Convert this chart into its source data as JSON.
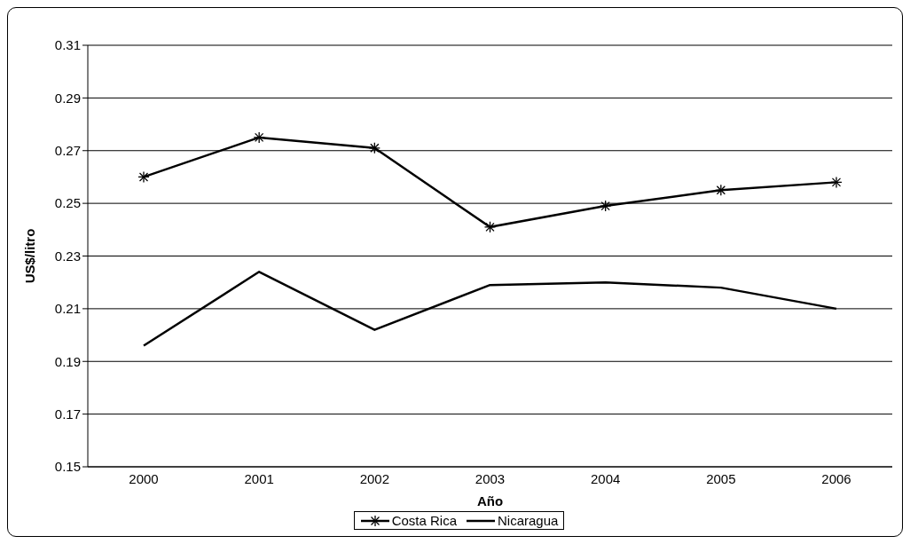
{
  "chart_data": {
    "type": "line",
    "xlabel": "Año",
    "ylabel": "US$/litro",
    "categories": [
      "2000",
      "2001",
      "2002",
      "2003",
      "2004",
      "2005",
      "2006"
    ],
    "series": [
      {
        "name": "Costa Rica",
        "color": "#000000",
        "marker": "cross",
        "values": [
          0.26,
          0.275,
          0.271,
          0.241,
          0.249,
          0.255,
          0.258
        ]
      },
      {
        "name": "Nicaragua",
        "color": "#000000",
        "marker": "none",
        "values": [
          0.196,
          0.224,
          0.202,
          0.219,
          0.22,
          0.218,
          0.21
        ]
      }
    ],
    "ylim": [
      0.15,
      0.31
    ],
    "yticks": [
      0.15,
      0.17,
      0.19,
      0.21,
      0.23,
      0.25,
      0.27,
      0.29,
      0.31
    ],
    "grid": "y",
    "legend": "bottom",
    "line_style": "solid"
  }
}
